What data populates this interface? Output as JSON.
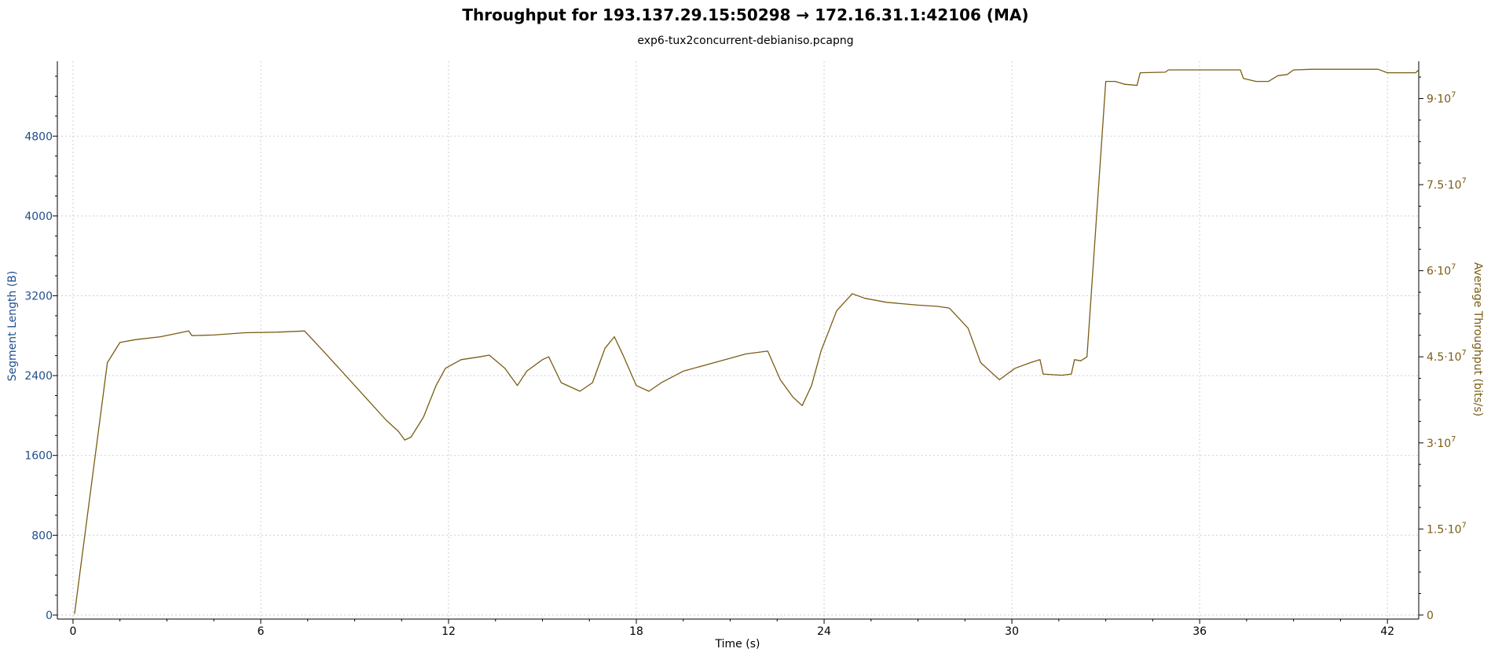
{
  "chart_data": {
    "type": "line",
    "title": "Throughput for 193.137.29.15:50298 → 172.16.31.1:42106 (MA)",
    "subtitle": "exp6-tux2concurrent-debianiso.pcapng",
    "xlabel": "Time (s)",
    "ylabel_left": "Segment Length (B)",
    "ylabel_right": "Average Throughput (bits/s)",
    "xlim": [
      -0.5,
      43
    ],
    "ylim_left": [
      -40,
      5550
    ],
    "ylim_right": [
      -700000,
      96500000
    ],
    "x_ticks": [
      {
        "value": 0,
        "label": "0"
      },
      {
        "value": 6,
        "label": "6"
      },
      {
        "value": 12,
        "label": "12"
      },
      {
        "value": 18,
        "label": "18"
      },
      {
        "value": 24,
        "label": "24"
      },
      {
        "value": 30,
        "label": "30"
      },
      {
        "value": 36,
        "label": "36"
      },
      {
        "value": 42,
        "label": "42"
      }
    ],
    "left_ticks": [
      {
        "value": 0,
        "label": "0"
      },
      {
        "value": 800,
        "label": "800"
      },
      {
        "value": 1600,
        "label": "1600"
      },
      {
        "value": 2400,
        "label": "2400"
      },
      {
        "value": 3200,
        "label": "3200"
      },
      {
        "value": 4000,
        "label": "4000"
      },
      {
        "value": 4800,
        "label": "4800"
      }
    ],
    "right_ticks": [
      {
        "value": 0,
        "base": "0",
        "exp": ""
      },
      {
        "value": 15000000,
        "base": "1.5·10",
        "exp": "7"
      },
      {
        "value": 30000000,
        "base": "3·10",
        "exp": "7"
      },
      {
        "value": 45000000,
        "base": "4.5·10",
        "exp": "7"
      },
      {
        "value": 60000000,
        "base": "6·10",
        "exp": "7"
      },
      {
        "value": 75000000,
        "base": "7.5·10",
        "exp": "7"
      },
      {
        "value": 90000000,
        "base": "9·10",
        "exp": "7"
      }
    ],
    "grid": true,
    "series": [
      {
        "axis": "right",
        "color": "#7a5c14",
        "x": [
          0.05,
          1.1,
          1.5,
          2.0,
          2.8,
          3.7,
          3.8,
          4.5,
          5.5,
          6.5,
          7.4,
          8.0,
          8.5,
          9.0,
          9.5,
          10.0,
          10.4,
          10.6,
          10.8,
          11.2,
          11.6,
          11.9,
          12.4,
          13.0,
          13.3,
          13.8,
          14.2,
          14.5,
          15.0,
          15.2,
          15.6,
          16.0,
          16.2,
          16.6,
          17.0,
          17.3,
          17.6,
          18.0,
          18.4,
          18.8,
          19.5,
          20.5,
          21.5,
          22.2,
          22.6,
          23.0,
          23.3,
          23.6,
          23.9,
          24.4,
          24.9,
          25.3,
          26.0,
          27.0,
          27.6,
          28.0,
          28.6,
          29.0,
          29.6,
          30.1,
          30.6,
          30.9,
          31.0,
          31.6,
          31.9,
          32.0,
          32.2,
          32.4,
          33.0,
          33.3,
          33.6,
          34.0,
          34.1,
          34.9,
          35.0,
          36.5,
          37.3,
          37.4,
          37.8,
          38.2,
          38.5,
          38.8,
          39.0,
          39.6,
          41.7,
          42.0,
          42.9,
          43.0
        ],
        "y": [
          200000,
          44000000,
          47500000,
          48000000,
          48500000,
          49500000,
          48700000,
          48800000,
          49200000,
          49300000,
          49500000,
          46000000,
          43000000,
          40000000,
          37000000,
          34000000,
          32000000,
          30500000,
          31000000,
          34500000,
          40000000,
          43000000,
          44500000,
          45000000,
          45300000,
          43000000,
          40000000,
          42500000,
          44500000,
          45000000,
          40500000,
          39500000,
          39000000,
          40500000,
          46500000,
          48500000,
          45000000,
          40000000,
          39000000,
          40500000,
          42500000,
          44000000,
          45500000,
          46000000,
          41000000,
          38000000,
          36500000,
          40000000,
          46000000,
          53000000,
          56000000,
          55200000,
          54500000,
          54000000,
          53800000,
          53500000,
          50000000,
          44000000,
          41000000,
          43000000,
          44000000,
          44500000,
          42000000,
          41800000,
          42000000,
          44500000,
          44300000,
          45000000,
          93000000,
          93000000,
          92500000,
          92300000,
          94500000,
          94600000,
          95000000,
          95000000,
          95000000,
          93500000,
          93000000,
          93000000,
          94000000,
          94200000,
          95000000,
          95100000,
          95100000,
          94500000,
          94500000,
          95000000
        ]
      }
    ]
  }
}
